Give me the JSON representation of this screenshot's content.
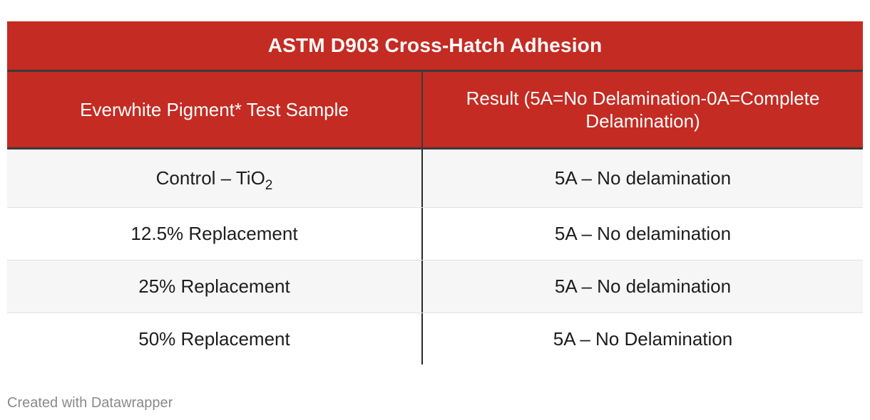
{
  "chart_data": {
    "type": "table",
    "title": "ASTM D903 Cross-Hatch Adhesion",
    "columns": [
      "Everwhite Pigment* Test Sample",
      "Result (5A=No Delamination-0A=Complete Delamination)"
    ],
    "rows": [
      {
        "sample_prefix": "Control – TiO",
        "sample_sub": "2",
        "result": "5A – No delamination"
      },
      {
        "sample": "12.5% Replacement",
        "result": "5A – No delamination"
      },
      {
        "sample": "25% Replacement",
        "result": "5A – No delamination"
      },
      {
        "sample": "50% Replacement",
        "result": "5A – No Delamination"
      }
    ]
  },
  "footer": {
    "credit": "Created with Datawrapper"
  },
  "colors": {
    "header_bg": "#c42b22",
    "header_text": "#ffffff",
    "row_shade": "#f6f6f6"
  }
}
